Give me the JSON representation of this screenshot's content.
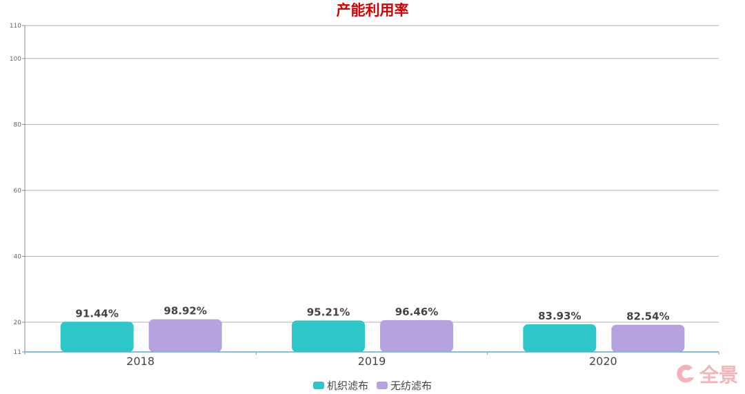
{
  "chart_data": {
    "type": "bar",
    "title": "产能利用率",
    "categories": [
      "2018",
      "2019",
      "2020"
    ],
    "series": [
      {
        "name": "机织滤布",
        "values": [
          91.44,
          95.21,
          83.93
        ],
        "labels": [
          "91.44%",
          "95.21%",
          "83.93%"
        ],
        "color": "#2ec7c9"
      },
      {
        "name": "无纺滤布",
        "values": [
          98.92,
          96.46,
          82.54
        ],
        "labels": [
          "98.92%",
          "96.46%",
          "82.54%"
        ],
        "color": "#b6a2de"
      }
    ],
    "ylim": [
      11,
      110
    ],
    "yticks": [
      "11",
      "20",
      "40",
      "60",
      "80",
      "100",
      "110"
    ],
    "grid": true,
    "legend_position": "bottom"
  },
  "watermark": {
    "text": "全景"
  }
}
